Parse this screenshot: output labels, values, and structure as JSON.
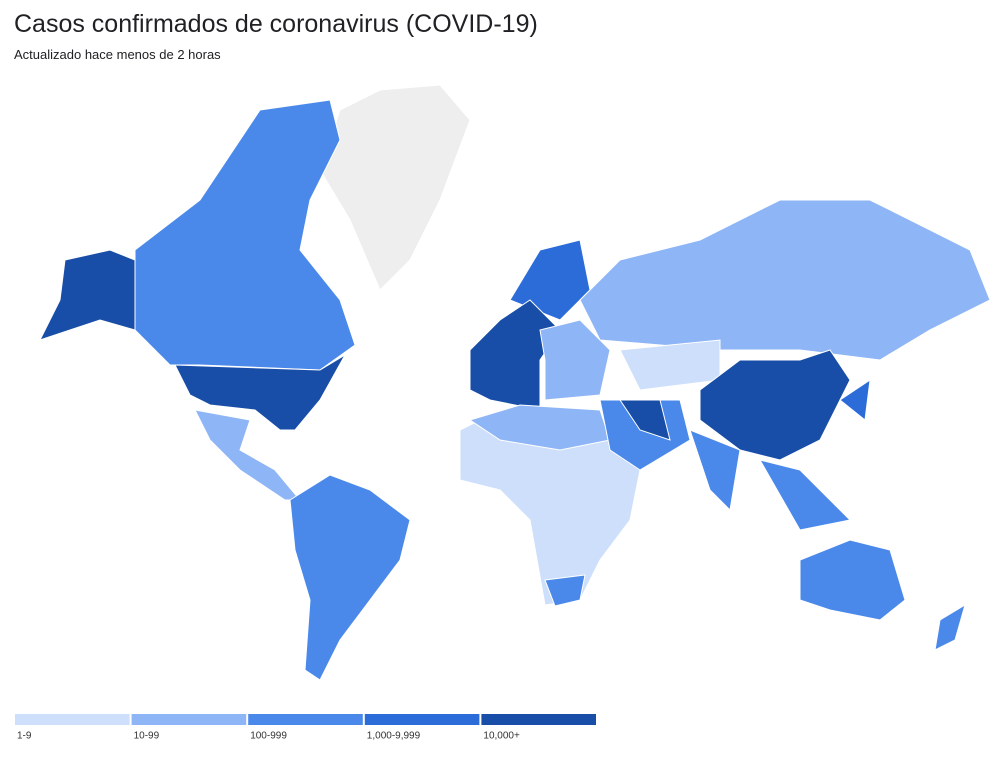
{
  "header": {
    "title": "Casos confirmados de coronavirus (COVID-19)",
    "subtitle": "Actualizado hace menos de 2 horas"
  },
  "legend": {
    "items": [
      {
        "label": "1-9",
        "color": "#cddffa"
      },
      {
        "label": "10-99",
        "color": "#8eb5f5"
      },
      {
        "label": "100-999",
        "color": "#4a89ea"
      },
      {
        "label": "1,000-9,999",
        "color": "#2c6cd8"
      },
      {
        "label": "10,000+",
        "color": "#184ea7"
      }
    ]
  }
}
